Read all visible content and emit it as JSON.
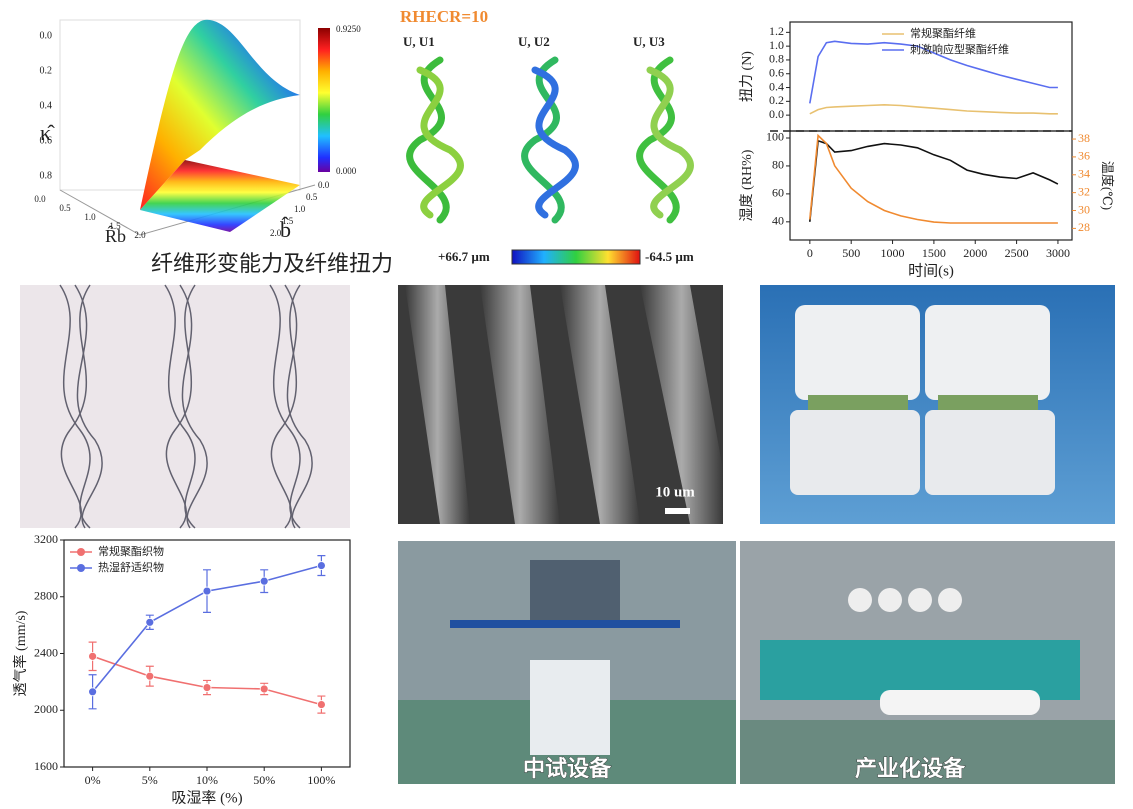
{
  "surface_plot": {
    "z_label": "κ̂",
    "x_label": "R̂b",
    "y_label": "b̂",
    "z_ticks": [
      "0.0",
      "0.2",
      "0.4",
      "0.6",
      "0.8"
    ],
    "x_ticks": [
      "0.0",
      "0.5",
      "1.0",
      "1.5",
      "2.0"
    ],
    "y_ticks": [
      "0.0",
      "0.5",
      "1.0",
      "1.5",
      "2.0"
    ],
    "colorbar_max": "0.9250",
    "colorbar_min": "0.000"
  },
  "caption": "纤维形变能力及纤维扭力",
  "simulation": {
    "title": "RHECR=10",
    "views": [
      "U, U1",
      "U, U2",
      "U, U3"
    ],
    "scale_max": "+66.7 µm",
    "scale_min": "-64.5 µm"
  },
  "photos": {
    "sem_scale": "10 um",
    "pilot_label": "中试设备",
    "industrial_label": "产业化设备"
  },
  "chart_data": [
    {
      "type": "line",
      "xlabel": "吸湿率 (%)",
      "ylabel": "透气率 (mm/s)",
      "categories": [
        "0%",
        "5%",
        "10%",
        "50%",
        "100%"
      ],
      "series": [
        {
          "name": "常规聚酯织物",
          "color": "#f07070",
          "values": [
            2380,
            2240,
            2160,
            2150,
            2040
          ],
          "errors": [
            100,
            70,
            50,
            40,
            60
          ]
        },
        {
          "name": "热湿舒适织物",
          "color": "#5a6ee0",
          "values": [
            2130,
            2620,
            2840,
            2910,
            3020
          ],
          "errors": [
            120,
            50,
            150,
            80,
            70
          ]
        }
      ],
      "ylim": [
        1600,
        3200
      ],
      "yticks": [
        1600,
        2000,
        2400,
        2800,
        3200
      ],
      "markers": true,
      "legend": "upper left"
    },
    {
      "type": "line",
      "ylabel": "扭力 (N)",
      "x": [
        0,
        100,
        200,
        300,
        500,
        700,
        900,
        1100,
        1300,
        1500,
        1700,
        1900,
        2100,
        2300,
        2500,
        2700,
        2900,
        3000
      ],
      "series": [
        {
          "name": "常规聚酯纤维",
          "color": "#e8c170",
          "values": [
            0.02,
            0.08,
            0.11,
            0.12,
            0.13,
            0.14,
            0.15,
            0.14,
            0.12,
            0.1,
            0.08,
            0.06,
            0.05,
            0.04,
            0.03,
            0.03,
            0.02,
            0.02
          ]
        },
        {
          "name": "刺激响应型聚酯纤维",
          "color": "#5a6ef0",
          "values": [
            0.17,
            0.85,
            1.05,
            1.07,
            1.04,
            1.03,
            1.05,
            1.03,
            1.0,
            0.9,
            0.8,
            0.72,
            0.65,
            0.58,
            0.52,
            0.46,
            0.4,
            0.4
          ]
        }
      ],
      "xlim": [
        -240,
        3170
      ],
      "ylim": [
        -0.23,
        1.35
      ],
      "yticks": [
        {
          "value": 0,
          "label": "0.0"
        },
        0.2,
        0.4,
        0.6,
        0.8,
        {
          "value": 1,
          "label": "1.0"
        },
        1.2
      ],
      "legend": "upper right"
    },
    {
      "type": "line",
      "xlabel": "时间(s)",
      "ylabel": "湿度 (RH%)",
      "y2label": "温度(℃)",
      "x": [
        0,
        100,
        200,
        300,
        500,
        700,
        900,
        1100,
        1300,
        1500,
        1700,
        1900,
        2100,
        2300,
        2500,
        2700,
        2900,
        3000
      ],
      "series": [
        {
          "color": "#111111",
          "values": [
            40,
            98,
            96,
            90,
            91,
            94,
            96,
            95,
            93,
            88,
            84,
            77,
            74,
            72,
            71,
            75,
            70,
            67
          ]
        },
        {
          "color": "#f08a30",
          "axis": "y2",
          "values": [
            29,
            38.4,
            37.5,
            35,
            32.5,
            31,
            30,
            29.4,
            29,
            28.7,
            28.6,
            28.6,
            28.6,
            28.6,
            28.6,
            28.6,
            28.6,
            28.6
          ]
        }
      ],
      "xlim": [
        -240,
        3170
      ],
      "xticks": [
        0,
        500,
        1000,
        1500,
        2000,
        2500,
        3000
      ],
      "ylim": [
        27,
        105
      ],
      "yticks": [
        40,
        60,
        80,
        100
      ],
      "y2lim": [
        26.7,
        38.9
      ],
      "y2ticks": [
        28,
        30,
        32,
        34,
        36,
        38
      ],
      "y2color": "#f08a30"
    }
  ]
}
